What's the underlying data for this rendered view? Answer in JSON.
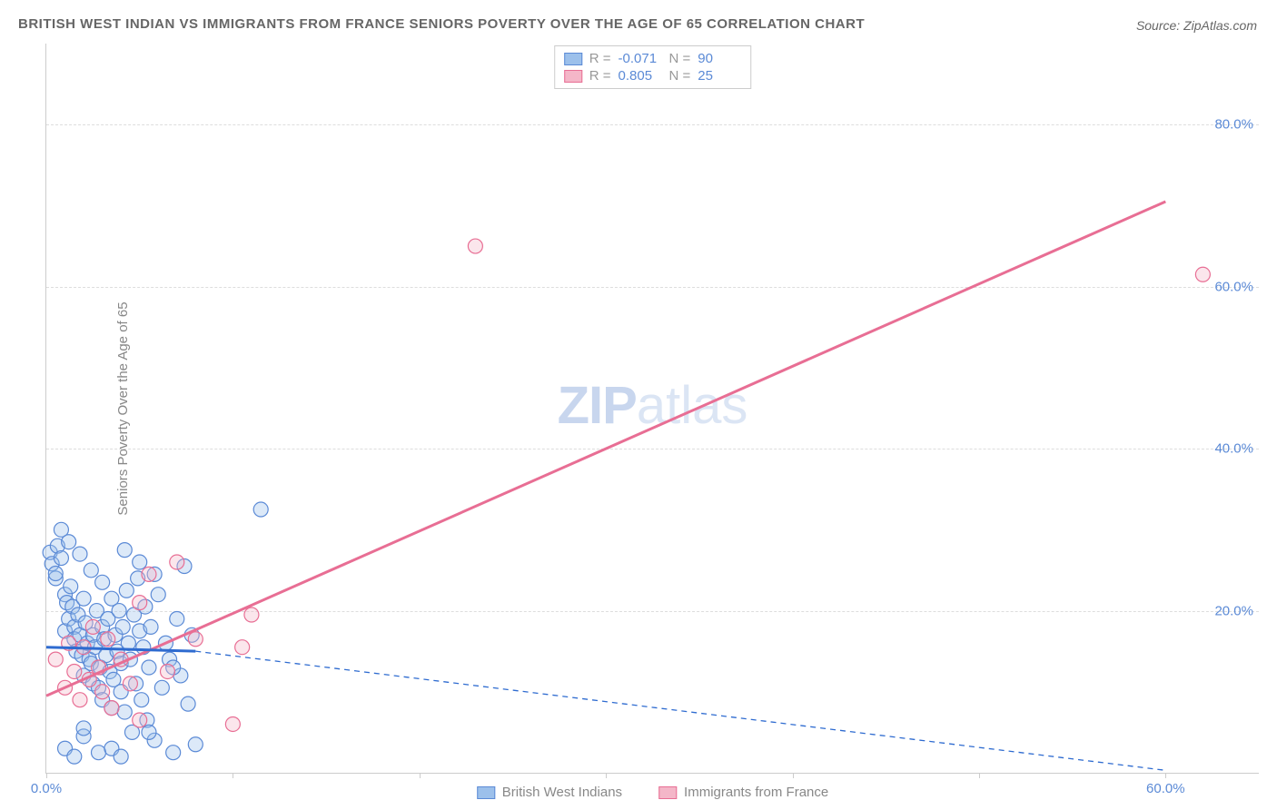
{
  "title": "BRITISH WEST INDIAN VS IMMIGRANTS FROM FRANCE SENIORS POVERTY OVER THE AGE OF 65 CORRELATION CHART",
  "source": "Source: ZipAtlas.com",
  "ylabel": "Seniors Poverty Over the Age of 65",
  "watermark_zip": "ZIP",
  "watermark_atlas": "atlas",
  "chart": {
    "type": "scatter-with-trendlines",
    "background_color": "#ffffff",
    "grid_color": "#dddddd",
    "axis_color": "#cccccc",
    "xlim": [
      0,
      65
    ],
    "ylim": [
      0,
      90
    ],
    "xticks": [
      0,
      10,
      20,
      30,
      40,
      50,
      60
    ],
    "xtick_labels": [
      "0.0%",
      "",
      "",
      "",
      "",
      "",
      "60.0%"
    ],
    "yticks": [
      20,
      40,
      60,
      80
    ],
    "ytick_labels": [
      "20.0%",
      "40.0%",
      "60.0%",
      "80.0%"
    ],
    "ylabel_fontsize": 15,
    "tick_fontsize": 15,
    "title_fontsize": 15,
    "watermark_fontsize": 58,
    "marker_radius": 8,
    "marker_fill_opacity": 0.35,
    "marker_stroke_width": 1.2,
    "trend_solid_width": 3,
    "trend_dash_width": 1.3,
    "trend_dash_pattern": "6,5"
  },
  "series": [
    {
      "key": "british_west_indians",
      "label": "British West Indians",
      "color_fill": "#9cc0eb",
      "color_stroke": "#5b8ad6",
      "R": "-0.071",
      "N": "90",
      "trend_solid": {
        "x1": 0,
        "y1": 15.5,
        "x2": 8,
        "y2": 15.0
      },
      "trend_dash": {
        "x1": 8,
        "y1": 15.0,
        "x2": 60,
        "y2": 0.3
      },
      "points": [
        [
          0.2,
          27.2
        ],
        [
          0.3,
          25.8
        ],
        [
          0.5,
          24.0
        ],
        [
          0.5,
          24.6
        ],
        [
          0.6,
          28.0
        ],
        [
          0.8,
          26.5
        ],
        [
          1.0,
          22.0
        ],
        [
          1.0,
          17.5
        ],
        [
          1.1,
          21.0
        ],
        [
          1.2,
          19.0
        ],
        [
          1.3,
          23.0
        ],
        [
          1.4,
          20.5
        ],
        [
          1.5,
          18.0
        ],
        [
          1.5,
          16.5
        ],
        [
          1.6,
          15.0
        ],
        [
          1.7,
          19.5
        ],
        [
          1.8,
          17.0
        ],
        [
          1.9,
          14.5
        ],
        [
          2.0,
          21.5
        ],
        [
          2.0,
          12.0
        ],
        [
          2.1,
          18.5
        ],
        [
          2.2,
          16.0
        ],
        [
          2.3,
          14.0
        ],
        [
          2.4,
          13.5
        ],
        [
          2.5,
          11.0
        ],
        [
          2.5,
          17.0
        ],
        [
          2.6,
          15.5
        ],
        [
          2.7,
          20.0
        ],
        [
          2.8,
          10.5
        ],
        [
          2.9,
          13.0
        ],
        [
          3.0,
          18.0
        ],
        [
          3.0,
          9.0
        ],
        [
          3.1,
          16.5
        ],
        [
          3.2,
          14.5
        ],
        [
          3.3,
          19.0
        ],
        [
          3.4,
          12.5
        ],
        [
          3.5,
          8.0
        ],
        [
          3.5,
          21.5
        ],
        [
          3.6,
          11.5
        ],
        [
          3.7,
          17.0
        ],
        [
          3.8,
          15.0
        ],
        [
          3.9,
          20.0
        ],
        [
          4.0,
          10.0
        ],
        [
          4.0,
          13.5
        ],
        [
          4.1,
          18.0
        ],
        [
          4.2,
          7.5
        ],
        [
          4.3,
          22.5
        ],
        [
          4.4,
          16.0
        ],
        [
          4.5,
          14.0
        ],
        [
          4.6,
          5.0
        ],
        [
          4.7,
          19.5
        ],
        [
          4.8,
          11.0
        ],
        [
          4.9,
          24.0
        ],
        [
          5.0,
          17.5
        ],
        [
          5.1,
          9.0
        ],
        [
          5.2,
          15.5
        ],
        [
          5.3,
          20.5
        ],
        [
          5.4,
          6.5
        ],
        [
          5.5,
          13.0
        ],
        [
          5.6,
          18.0
        ],
        [
          5.8,
          4.0
        ],
        [
          6.0,
          22.0
        ],
        [
          6.2,
          10.5
        ],
        [
          6.4,
          16.0
        ],
        [
          6.6,
          14.0
        ],
        [
          6.8,
          2.5
        ],
        [
          7.0,
          19.0
        ],
        [
          7.2,
          12.0
        ],
        [
          7.4,
          25.5
        ],
        [
          7.6,
          8.5
        ],
        [
          7.8,
          17.0
        ],
        [
          8.0,
          3.5
        ],
        [
          1.0,
          3.0
        ],
        [
          1.5,
          2.0
        ],
        [
          2.0,
          4.5
        ],
        [
          2.8,
          2.5
        ],
        [
          3.5,
          3.0
        ],
        [
          4.0,
          2.0
        ],
        [
          0.8,
          30.0
        ],
        [
          1.2,
          28.5
        ],
        [
          1.8,
          27.0
        ],
        [
          2.4,
          25.0
        ],
        [
          4.2,
          27.5
        ],
        [
          5.0,
          26.0
        ],
        [
          5.8,
          24.5
        ],
        [
          3.0,
          23.5
        ],
        [
          2.0,
          5.5
        ],
        [
          5.5,
          5.0
        ],
        [
          6.8,
          13.0
        ],
        [
          11.5,
          32.5
        ]
      ]
    },
    {
      "key": "immigrants_france",
      "label": "Immigrants from France",
      "color_fill": "#f4b6c8",
      "color_stroke": "#e86e94",
      "R": "0.805",
      "N": "25",
      "trend_solid": {
        "x1": 0,
        "y1": 9.5,
        "x2": 60,
        "y2": 70.5
      },
      "trend_dash": null,
      "points": [
        [
          0.5,
          14.0
        ],
        [
          1.0,
          10.5
        ],
        [
          1.2,
          16.0
        ],
        [
          1.5,
          12.5
        ],
        [
          1.8,
          9.0
        ],
        [
          2.0,
          15.5
        ],
        [
          2.3,
          11.5
        ],
        [
          2.5,
          18.0
        ],
        [
          2.8,
          13.0
        ],
        [
          3.0,
          10.0
        ],
        [
          3.3,
          16.5
        ],
        [
          3.5,
          8.0
        ],
        [
          4.0,
          14.0
        ],
        [
          4.5,
          11.0
        ],
        [
          5.0,
          21.0
        ],
        [
          5.5,
          24.5
        ],
        [
          6.5,
          12.5
        ],
        [
          7.0,
          26.0
        ],
        [
          8.0,
          16.5
        ],
        [
          10.5,
          15.5
        ],
        [
          11.0,
          19.5
        ],
        [
          10.0,
          6.0
        ],
        [
          5.0,
          6.5
        ],
        [
          23.0,
          65.0
        ],
        [
          62.0,
          61.5
        ]
      ]
    }
  ],
  "legend": {
    "stats": [
      {
        "series": 0,
        "R_label": "R =",
        "N_label": "N ="
      },
      {
        "series": 1,
        "R_label": "R =",
        "N_label": "N ="
      }
    ]
  }
}
